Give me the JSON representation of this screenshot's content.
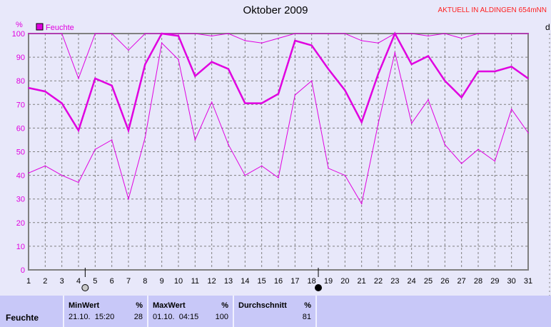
{
  "header": {
    "title": "Oktober 2009",
    "status": "AKTUELL IN ALDINGEN 654mNN",
    "right_cut_label": "d"
  },
  "chart_data": {
    "type": "line",
    "title": "Oktober 2009",
    "ylabel": "%",
    "ylim": [
      0,
      100
    ],
    "yticks": [
      0,
      10,
      20,
      30,
      40,
      50,
      60,
      70,
      80,
      90,
      100
    ],
    "x": [
      1,
      2,
      3,
      4,
      5,
      6,
      7,
      8,
      9,
      10,
      11,
      12,
      13,
      14,
      15,
      16,
      17,
      18,
      19,
      20,
      21,
      22,
      23,
      24,
      25,
      26,
      27,
      28,
      29,
      30,
      31
    ],
    "legend": {
      "label": "Feuchte",
      "placement": "top-left"
    },
    "grid": true,
    "colors": {
      "series": "#e000e0",
      "axis": "#808080",
      "grid": "#808080"
    },
    "series": [
      {
        "name": "Feuchte",
        "role": "mean",
        "values": [
          77,
          75.5,
          70.5,
          59,
          81,
          78,
          59,
          87,
          100,
          99,
          82,
          88,
          85,
          70.5,
          70.5,
          74.5,
          97,
          95,
          85,
          76,
          62.5,
          83,
          100,
          87,
          90.5,
          80,
          73,
          84,
          84,
          86,
          81
        ]
      },
      {
        "role": "max",
        "values": [
          100,
          100,
          100,
          81,
          100,
          100,
          93,
          100,
          100,
          100,
          100,
          99,
          100,
          97,
          96,
          98,
          100,
          100,
          100,
          100,
          97,
          96,
          100,
          100,
          99,
          100,
          98,
          100,
          100,
          100,
          100
        ]
      },
      {
        "role": "min",
        "values": [
          41,
          44,
          40,
          37,
          51,
          55,
          30,
          56,
          96,
          89,
          55,
          71,
          53,
          40,
          44,
          39,
          74,
          80,
          43,
          40,
          28,
          62,
          92,
          62,
          72,
          53,
          45,
          51,
          46,
          68,
          58
        ]
      }
    ],
    "moon_phases": [
      {
        "day": 4.4,
        "icon": "new-moon-icon"
      },
      {
        "day": 18.4,
        "icon": "full-moon-icon"
      }
    ]
  },
  "table": {
    "row_label": "Feuchte",
    "min": {
      "header": "MinWert",
      "unit": "%",
      "time": "21.10.  15:20",
      "value": "28"
    },
    "max": {
      "header": "MaxWert",
      "unit": "%",
      "time": "01.10.  04:15",
      "value": "100"
    },
    "avg": {
      "header": "Durchschnitt",
      "unit": "%",
      "value": "81"
    }
  }
}
